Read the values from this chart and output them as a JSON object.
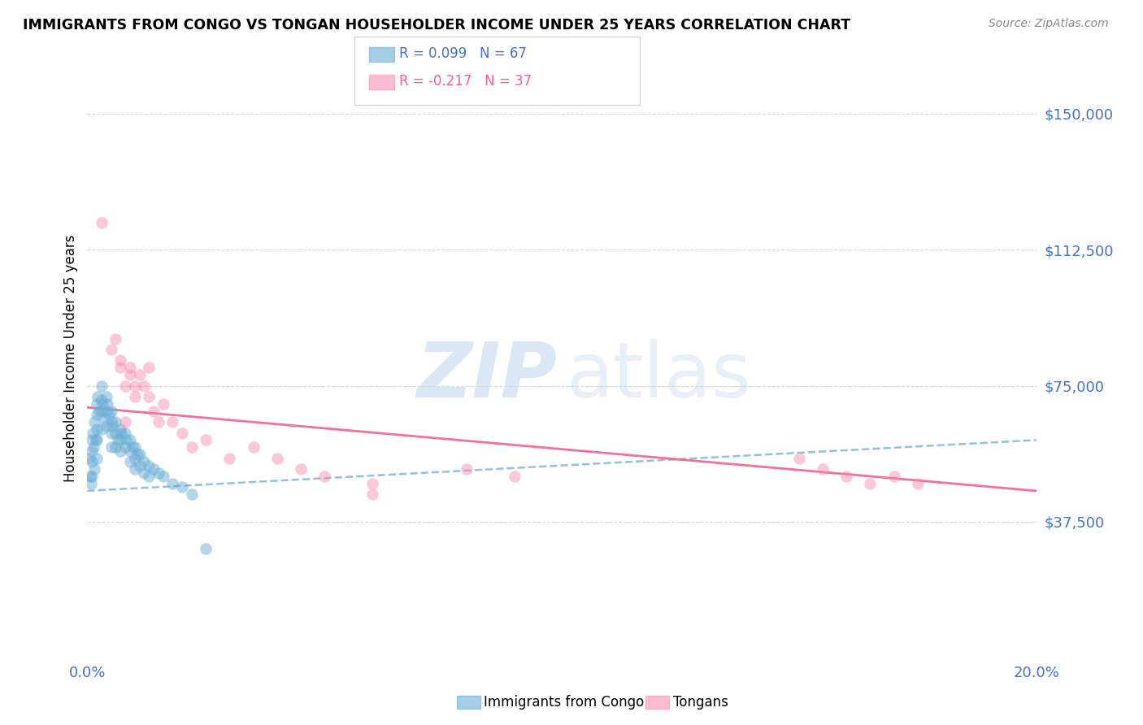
{
  "title": "IMMIGRANTS FROM CONGO VS TONGAN HOUSEHOLDER INCOME UNDER 25 YEARS CORRELATION CHART",
  "source": "Source: ZipAtlas.com",
  "ylabel": "Householder Income Under 25 years",
  "xlim": [
    0.0,
    0.2
  ],
  "ylim": [
    0,
    165000
  ],
  "yticks": [
    0,
    37500,
    75000,
    112500,
    150000
  ],
  "ytick_labels": [
    "",
    "$37,500",
    "$75,000",
    "$112,500",
    "$150,000"
  ],
  "xtick_vals": [
    0.0,
    0.02,
    0.04,
    0.06,
    0.08,
    0.1,
    0.12,
    0.14,
    0.16,
    0.18,
    0.2
  ],
  "legend1_label": "R = 0.099   N = 67",
  "legend2_label": "R = -0.217   N = 37",
  "bottom_legend1": "Immigrants from Congo",
  "bottom_legend2": "Tongans",
  "blue_color": "#6baed6",
  "pink_color": "#f887b0",
  "axis_label_color": "#4472c4",
  "congo_x": [
    0.0005,
    0.0007,
    0.0008,
    0.001,
    0.001,
    0.001,
    0.001,
    0.0012,
    0.0013,
    0.0015,
    0.0015,
    0.0018,
    0.002,
    0.002,
    0.002,
    0.002,
    0.002,
    0.0022,
    0.0025,
    0.003,
    0.003,
    0.003,
    0.003,
    0.0032,
    0.0035,
    0.004,
    0.004,
    0.004,
    0.0042,
    0.0045,
    0.005,
    0.005,
    0.005,
    0.005,
    0.0052,
    0.006,
    0.006,
    0.006,
    0.0065,
    0.007,
    0.007,
    0.007,
    0.0072,
    0.008,
    0.008,
    0.0082,
    0.009,
    0.009,
    0.009,
    0.0095,
    0.01,
    0.01,
    0.01,
    0.0105,
    0.011,
    0.011,
    0.012,
    0.012,
    0.013,
    0.013,
    0.014,
    0.015,
    0.016,
    0.018,
    0.02,
    0.022,
    0.025
  ],
  "congo_y": [
    55000,
    50000,
    48000,
    60000,
    57000,
    54000,
    50000,
    62000,
    58000,
    65000,
    52000,
    60000,
    70000,
    67000,
    63000,
    60000,
    55000,
    72000,
    68000,
    75000,
    71000,
    68000,
    63000,
    70000,
    66000,
    72000,
    68000,
    64000,
    70000,
    67000,
    68000,
    65000,
    62000,
    58000,
    64000,
    65000,
    62000,
    58000,
    60000,
    63000,
    60000,
    57000,
    62000,
    62000,
    58000,
    60000,
    60000,
    57000,
    54000,
    58000,
    58000,
    55000,
    52000,
    56000,
    56000,
    53000,
    54000,
    51000,
    53000,
    50000,
    52000,
    51000,
    50000,
    48000,
    47000,
    45000,
    30000
  ],
  "tongan_x": [
    0.003,
    0.005,
    0.006,
    0.007,
    0.007,
    0.008,
    0.009,
    0.009,
    0.01,
    0.01,
    0.011,
    0.012,
    0.013,
    0.013,
    0.014,
    0.015,
    0.016,
    0.018,
    0.02,
    0.022,
    0.025,
    0.03,
    0.035,
    0.04,
    0.045,
    0.05,
    0.06,
    0.06,
    0.08,
    0.09,
    0.15,
    0.155,
    0.16,
    0.165,
    0.17,
    0.175,
    0.008
  ],
  "tongan_y": [
    120000,
    85000,
    88000,
    82000,
    80000,
    75000,
    80000,
    78000,
    75000,
    72000,
    78000,
    75000,
    80000,
    72000,
    68000,
    65000,
    70000,
    65000,
    62000,
    58000,
    60000,
    55000,
    58000,
    55000,
    52000,
    50000,
    48000,
    45000,
    52000,
    50000,
    55000,
    52000,
    50000,
    48000,
    50000,
    48000,
    65000
  ],
  "congo_trend": [
    46000,
    60000
  ],
  "tongan_trend": [
    69000,
    46000
  ]
}
